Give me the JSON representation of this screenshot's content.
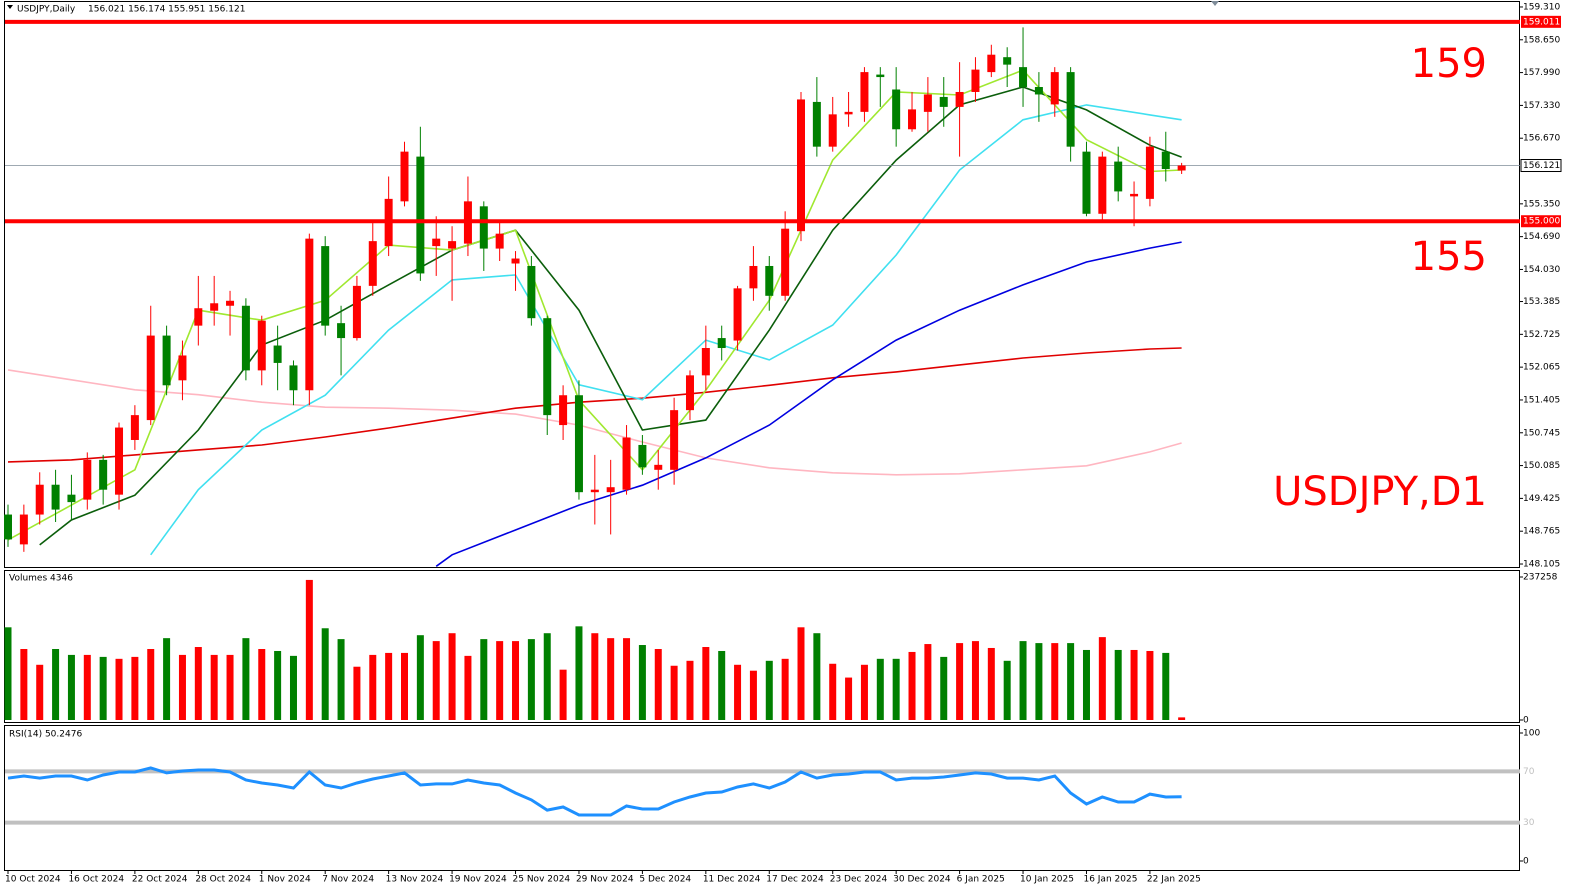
{
  "chart_data": [
    {
      "type": "candlestick",
      "title": "USDJPY,Daily",
      "ohlc_text": "156.021 156.174 155.951 156.121",
      "watermark": "USDJPY,D1",
      "annotations": [
        "159",
        "155"
      ],
      "up_color": "#ff0000",
      "down_color": "#008000",
      "open": [
        149.1,
        148.5,
        149.1,
        149.7,
        149.5,
        149.4,
        150.2,
        149.5,
        150.6,
        151.0,
        152.7,
        151.8,
        152.9,
        153.2,
        153.3,
        153.3,
        152.0,
        152.5,
        152.1,
        151.6,
        154.5,
        152.95,
        152.65,
        153.7,
        154.5,
        155.4,
        156.3,
        154.5,
        154.45,
        154.55,
        155.3,
        154.45,
        154.15,
        154.1,
        153.05,
        150.9,
        151.5,
        149.55,
        149.55,
        149.6,
        150.5,
        150.0,
        150.0,
        151.2,
        151.9,
        152.65,
        152.6,
        153.65,
        154.1,
        153.5,
        154.8,
        157.4,
        156.5,
        157.15,
        157.2,
        157.95,
        157.65,
        156.85,
        157.2,
        157.5,
        157.3,
        157.6,
        158.0,
        158.3,
        158.1,
        157.7,
        157.35,
        158.0,
        156.4,
        155.15,
        156.2,
        155.5,
        155.45,
        156.4,
        156.021
      ],
      "high": [
        149.3,
        149.3,
        149.95,
        150.0,
        149.9,
        150.35,
        150.3,
        150.95,
        151.3,
        153.3,
        152.9,
        152.6,
        153.9,
        153.9,
        153.6,
        153.45,
        153.1,
        152.9,
        152.2,
        154.75,
        154.7,
        153.3,
        153.9,
        155.0,
        155.9,
        156.6,
        156.9,
        155.1,
        154.9,
        155.9,
        155.4,
        155.0,
        154.4,
        154.3,
        153.1,
        151.7,
        151.8,
        150.3,
        150.2,
        150.9,
        150.7,
        150.4,
        151.45,
        152.0,
        152.9,
        152.9,
        153.7,
        154.5,
        154.3,
        155.2,
        157.6,
        157.9,
        157.5,
        157.6,
        158.1,
        158.1,
        158.1,
        157.6,
        157.9,
        157.9,
        158.2,
        158.3,
        158.55,
        158.5,
        158.9,
        158.0,
        158.1,
        158.1,
        156.6,
        156.4,
        156.5,
        155.8,
        156.7,
        156.8,
        156.174
      ],
      "low": [
        148.45,
        148.35,
        148.9,
        148.95,
        149.0,
        149.2,
        149.3,
        149.2,
        150.4,
        150.9,
        151.5,
        151.4,
        152.5,
        152.9,
        152.7,
        151.8,
        151.7,
        151.6,
        151.3,
        151.3,
        152.7,
        151.9,
        152.6,
        153.5,
        154.3,
        155.3,
        153.8,
        153.9,
        153.4,
        154.3,
        154.0,
        154.2,
        153.6,
        152.9,
        150.7,
        150.6,
        149.4,
        148.9,
        148.7,
        149.5,
        149.9,
        149.6,
        149.7,
        151.0,
        151.6,
        152.2,
        152.4,
        153.4,
        153.2,
        153.4,
        154.6,
        156.3,
        156.4,
        156.9,
        157.0,
        157.3,
        156.5,
        156.8,
        156.8,
        156.9,
        156.3,
        157.4,
        157.9,
        157.7,
        157.3,
        157.0,
        157.1,
        156.2,
        155.1,
        155.0,
        155.4,
        154.9,
        155.3,
        155.8,
        155.951
      ],
      "close": [
        148.6,
        149.1,
        149.7,
        149.2,
        149.35,
        150.2,
        149.6,
        150.85,
        151.1,
        152.7,
        151.7,
        152.3,
        153.25,
        153.35,
        153.4,
        152.0,
        153.0,
        152.15,
        151.6,
        154.65,
        152.9,
        152.65,
        153.7,
        154.6,
        155.45,
        156.4,
        153.95,
        154.65,
        154.6,
        155.4,
        154.45,
        154.75,
        154.25,
        153.05,
        151.1,
        151.5,
        149.55,
        149.6,
        149.65,
        150.65,
        150.05,
        150.1,
        151.2,
        151.9,
        152.45,
        152.45,
        153.65,
        154.1,
        153.5,
        154.85,
        157.45,
        156.5,
        157.15,
        157.2,
        158.0,
        157.9,
        156.85,
        157.25,
        157.55,
        157.3,
        157.6,
        158.05,
        158.35,
        158.15,
        157.7,
        157.55,
        158.0,
        156.5,
        155.15,
        156.3,
        155.6,
        155.55,
        156.5,
        156.05,
        156.121
      ],
      "ylim": [
        148.045,
        159.41
      ],
      "yticks": [
        {
          "value": 159.31,
          "label": "159.310"
        },
        {
          "value": 158.65,
          "label": "158.650"
        },
        {
          "value": 157.99,
          "label": "157.990"
        },
        {
          "value": 157.33,
          "label": "157.330"
        },
        {
          "value": 156.67,
          "label": "156.670"
        },
        {
          "value": 155.35,
          "label": "155.350"
        },
        {
          "value": 154.69,
          "label": "154.690"
        },
        {
          "value": 154.03,
          "label": "154.030"
        },
        153.385,
        152.725,
        152.065,
        151.405,
        150.745,
        150.085,
        149.425,
        148.765,
        148.105
      ],
      "hlines": [
        {
          "value": 159.011,
          "label": "159.011",
          "color": "#ff0000"
        },
        {
          "value": 155,
          "label": "155.000",
          "color": "#ff0000"
        }
      ],
      "current_price": {
        "value": 156.121,
        "label": "156.121",
        "color": "#7f8c99"
      },
      "moving_averages": [
        {
          "color": "#ffb6c1",
          "x": [
            0,
            4,
            8,
            12,
            16,
            20,
            24,
            28,
            32,
            36,
            40,
            44,
            48,
            52,
            56,
            60,
            64,
            68,
            72,
            74
          ],
          "values": [
            152.01,
            151.81,
            151.61,
            151.51,
            151.36,
            151.26,
            151.24,
            151.2,
            151.12,
            150.9,
            150.56,
            150.24,
            150.04,
            149.94,
            149.9,
            149.92,
            150.0,
            150.08,
            150.36,
            150.54
          ]
        },
        {
          "color": "#e00000",
          "x": [
            0,
            4,
            8,
            12,
            16,
            20,
            24,
            28,
            32,
            36,
            40,
            44,
            48,
            52,
            56,
            60,
            64,
            68,
            72,
            74
          ],
          "values": [
            150.16,
            150.2,
            150.3,
            150.4,
            150.5,
            150.66,
            150.84,
            151.04,
            151.24,
            151.36,
            151.44,
            151.56,
            151.7,
            151.85,
            151.97,
            152.11,
            152.25,
            152.35,
            152.43,
            152.45
          ]
        },
        {
          "color": "#0000e0",
          "x": [
            27,
            28,
            32,
            36,
            40,
            44,
            48,
            52,
            56,
            60,
            64,
            68,
            72,
            74
          ],
          "values": [
            148.06,
            148.29,
            148.79,
            149.29,
            149.69,
            150.24,
            150.9,
            151.81,
            152.61,
            153.21,
            153.72,
            154.18,
            154.46,
            154.58
          ]
        },
        {
          "color": "#40e0f0",
          "x": [
            9,
            12,
            16,
            20,
            24,
            28,
            32,
            36,
            40,
            44,
            48,
            52,
            56,
            60,
            64,
            68,
            72,
            74
          ],
          "values": [
            148.29,
            149.6,
            150.8,
            151.5,
            152.81,
            153.82,
            153.92,
            151.71,
            151.41,
            152.61,
            152.21,
            152.91,
            154.32,
            156.03,
            157.04,
            157.34,
            157.14,
            157.04
          ]
        },
        {
          "color": "#0b5e0b",
          "x": [
            2,
            4,
            8,
            12,
            16,
            20,
            24,
            28,
            32,
            36,
            40,
            44,
            48,
            52,
            56,
            60,
            64,
            68,
            72,
            74
          ],
          "values": [
            148.49,
            148.99,
            149.49,
            150.8,
            152.51,
            153.01,
            153.72,
            154.42,
            154.82,
            153.21,
            150.8,
            151.0,
            152.81,
            154.82,
            156.23,
            157.34,
            157.7,
            157.24,
            156.53,
            156.29
          ]
        },
        {
          "color": "#a0e830",
          "x": [
            0,
            4,
            8,
            12,
            16,
            20,
            24,
            28,
            32,
            36,
            40,
            44,
            48,
            52,
            56,
            60,
            64,
            68,
            72,
            74
          ],
          "values": [
            148.59,
            149.29,
            150.0,
            153.21,
            153.01,
            153.41,
            154.52,
            154.42,
            154.82,
            151.4,
            150.0,
            151.6,
            153.41,
            156.23,
            157.6,
            157.54,
            158.04,
            156.64,
            156.0,
            156.03
          ]
        }
      ]
    },
    {
      "type": "bar",
      "title": "Volumes 4346",
      "values": [
        153800,
        117800,
        91600,
        117800,
        108000,
        108000,
        104700,
        101500,
        104700,
        117800,
        135800,
        108000,
        121100,
        108000,
        108000,
        135800,
        117800,
        114500,
        106400,
        232400,
        152200,
        134200,
        88400,
        108000,
        111300,
        111300,
        140700,
        130900,
        144000,
        106400,
        134200,
        130900,
        130900,
        134200,
        144000,
        83500,
        155400,
        144000,
        135800,
        135800,
        124400,
        117800,
        90000,
        98200,
        121100,
        114500,
        91600,
        81800,
        98200,
        101500,
        153800,
        144000,
        93300,
        70400,
        91600,
        101500,
        101500,
        112900,
        126000,
        104700,
        127600,
        130900,
        119500,
        98200,
        130900,
        127600,
        127600,
        127600,
        116200,
        137500,
        116200,
        116200,
        114500,
        111300,
        4346
      ],
      "ylim": [
        0,
        237258
      ],
      "yticks": [
        0,
        237258
      ]
    },
    {
      "type": "line",
      "title": "RSI(14) 50.2476",
      "color": "#1e90ff",
      "level_color": "#c0c0c0",
      "values": [
        64.8,
        66.4,
        64.8,
        66.4,
        66.4,
        63.3,
        67.2,
        69.5,
        69.5,
        72.7,
        68.8,
        70.3,
        71.1,
        71.1,
        69.5,
        63.3,
        60.9,
        59.4,
        57.0,
        69.5,
        59.4,
        57.0,
        60.9,
        64.1,
        66.4,
        68.8,
        59.4,
        60.2,
        60.2,
        63.3,
        60.9,
        59.4,
        53.1,
        47.7,
        39.8,
        42.2,
        35.9,
        35.9,
        35.9,
        43.0,
        40.6,
        40.6,
        46.1,
        50.0,
        53.1,
        53.9,
        57.8,
        60.2,
        57.0,
        61.7,
        69.5,
        64.8,
        67.2,
        68.0,
        69.5,
        69.5,
        63.3,
        64.8,
        64.8,
        65.6,
        67.2,
        68.8,
        68.0,
        64.8,
        64.8,
        63.3,
        66.4,
        53.1,
        44.5,
        50.0,
        46.1,
        46.1,
        52.3,
        50.0,
        50.2476
      ],
      "ylim": [
        0,
        100
      ],
      "yticks": [
        100,
        70,
        30,
        0
      ],
      "categories": [
        "10 Oct 2024",
        null,
        null,
        null,
        "16 Oct 2024",
        null,
        null,
        null,
        "22 Oct 2024",
        null,
        null,
        null,
        "28 Oct 2024",
        null,
        null,
        null,
        "1 Nov 2024",
        null,
        null,
        null,
        "7 Nov 2024",
        null,
        null,
        null,
        "13 Nov 2024",
        null,
        null,
        null,
        "19 Nov 2024",
        null,
        null,
        null,
        "25 Nov 2024",
        null,
        null,
        null,
        "29 Nov 2024",
        null,
        null,
        null,
        "5 Dec 2024",
        null,
        null,
        null,
        "11 Dec 2024",
        null,
        null,
        null,
        "17 Dec 2024",
        null,
        null,
        null,
        "23 Dec 2024",
        null,
        null,
        null,
        "30 Dec 2024",
        null,
        null,
        null,
        "6 Jan 2025",
        null,
        null,
        null,
        "10 Jan 2025",
        null,
        null,
        null,
        "16 Jan 2025",
        null,
        null,
        null,
        "22 Jan 2025",
        null,
        null
      ]
    }
  ]
}
